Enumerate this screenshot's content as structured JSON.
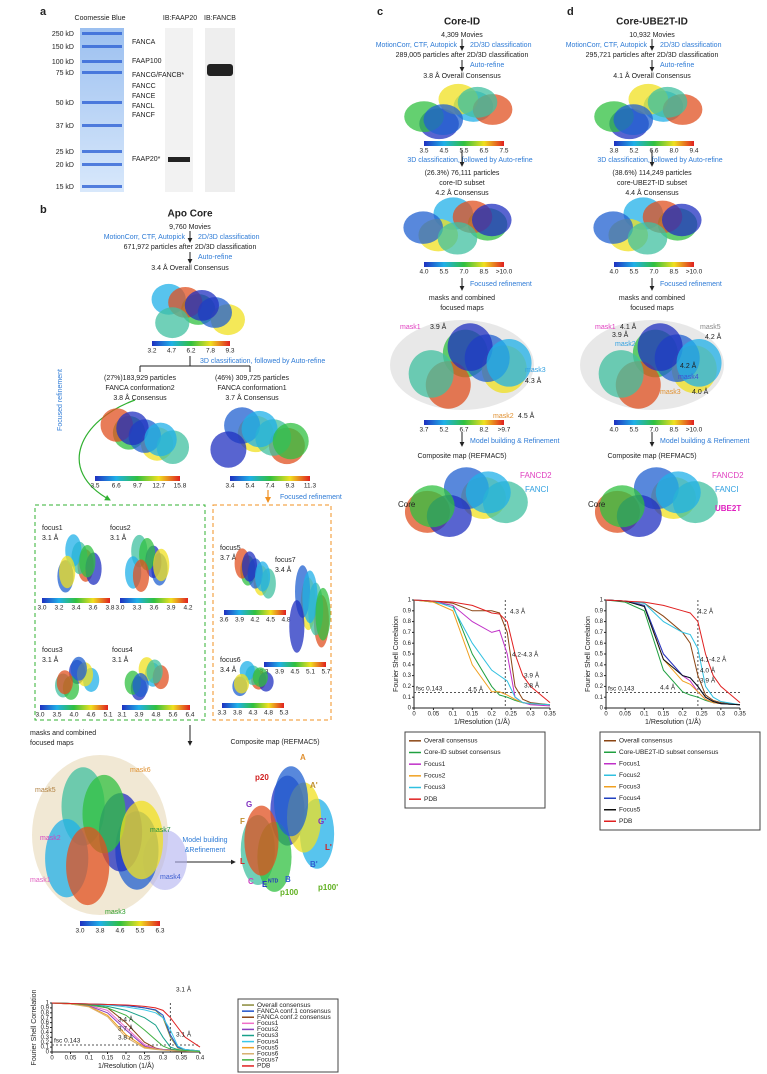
{
  "panel_a": {
    "label": "a",
    "title": "Coomessie Blue",
    "lanes": [
      "IB:FAAP20",
      "IB:FANCB"
    ],
    "markers": [
      "250 kD",
      "150 kD",
      "100 kD",
      "75 kD",
      "50 kD",
      "37 kD",
      "25 kD",
      "20 kD",
      "15 kD"
    ],
    "proteins": [
      "FANCA",
      "FAAP100",
      "FANCG/FANCB*",
      "FANCC",
      "FANCE",
      "FANCL",
      "FANCF",
      "FAAP20*"
    ]
  },
  "panel_b": {
    "label": "b",
    "title": "Apo Core",
    "movies": "9,760 Movies",
    "step1": "MotionCorr, CTF, Autopick",
    "step2": "2D/3D classification",
    "particles": "671,972 particles after 2D/3D classification",
    "refine": "Auto-refine",
    "consensus": "3.4 Å Overall Consensus",
    "colorbar1": [
      "3.2",
      "4.7",
      "6.2",
      "7.8",
      "9.3"
    ],
    "classification": "3D classification, followed by Auto-refine",
    "class_left": [
      "(27%)183,929 particles",
      "FANCA conformation2",
      "3.8 Å Consensus"
    ],
    "class_right": [
      "(46%) 309,725 particles",
      "FANCA conformation1",
      "3.7 Å Consensus"
    ],
    "colorbar2": [
      "3.5",
      "6.6",
      "9.7",
      "12.7",
      "15.8"
    ],
    "colorbar3": [
      "3.4",
      "5.4",
      "7.4",
      "9.3",
      "11.3"
    ],
    "focused_left": "Focused refinement",
    "focused_right": "Focused refinement",
    "focus_left": [
      {
        "name": "focus1",
        "res": "3.1 Å",
        "scale": [
          "3.0",
          "3.2",
          "3.4",
          "3.6",
          "3.8"
        ]
      },
      {
        "name": "focus2",
        "res": "3.1 Å",
        "scale": [
          "3.0",
          "3.3",
          "3.6",
          "3.9",
          "4.2"
        ]
      },
      {
        "name": "focus3",
        "res": "3.1 Å",
        "scale": [
          "3.0",
          "3.5",
          "4.0",
          "4.6",
          "5.1"
        ]
      },
      {
        "name": "focus4",
        "res": "3.1 Å",
        "scale": [
          "3.1",
          "3.9",
          "4.8",
          "5.6",
          "6.4"
        ]
      }
    ],
    "focus_right": [
      {
        "name": "focus5",
        "res": "3.7 Å",
        "scale": [
          "3.6",
          "3.9",
          "4.2",
          "4.5",
          "4.8"
        ]
      },
      {
        "name": "focus7",
        "res": "3.4 Å",
        "scale": [
          "3.3",
          "3.9",
          "4.5",
          "5.1",
          "5.7"
        ]
      },
      {
        "name": "focus6",
        "res": "3.4 Å",
        "scale": [
          "3.3",
          "3.8",
          "4.3",
          "4.8",
          "5.3"
        ]
      }
    ],
    "masks_caption": [
      "masks and combined",
      "focused maps"
    ],
    "masks": [
      "mask6",
      "mask5",
      "mask7",
      "mask2",
      "mask1",
      "mask4",
      "mask3"
    ],
    "colorbar4": [
      "3.0",
      "3.8",
      "4.6",
      "5.5",
      "6.3"
    ],
    "model": [
      "Model building",
      "&Refinement"
    ],
    "composite": "Composite map (REFMAC5)",
    "composite_labels": [
      "p20",
      "A",
      "A'",
      "G",
      "F",
      "G'",
      "L",
      "C",
      "E",
      "NTD",
      "B",
      "B'",
      "p100",
      "p100'",
      "L'"
    ]
  },
  "panel_c": {
    "label": "c",
    "title": "Core-ID",
    "movies": "4,309 Movies",
    "step1": "MotionCorr, CTF, Autopick",
    "step2": "2D/3D classification",
    "particles": "289,005 particles after 2D/3D classification",
    "refine": "Auto-refine",
    "consensus": "3.8 Å Overall Consensus",
    "colorbar1": [
      "3.5",
      "4.5",
      "5.5",
      "6.5",
      "7.5"
    ],
    "classification": "3D classification, followed by Auto-refine",
    "subset": [
      "(26.3%) 76,111 particles",
      "core-ID subset",
      "4.2 Å Consensus"
    ],
    "colorbar2": [
      "4.0",
      "5.5",
      "7.0",
      "8.5",
      ">10.0"
    ],
    "focused": "Focused refinement",
    "masks_caption": [
      "masks and combined",
      "focused maps"
    ],
    "mask_labels": [
      {
        "name": "mask1",
        "res": "3.9 Å"
      },
      {
        "name": "mask3",
        "res": "4.3 Å"
      },
      {
        "name": "mask2",
        "res": "4.5 Å"
      }
    ],
    "colorbar3": [
      "3.7",
      "5.2",
      "6.7",
      "8.2",
      ">9.7"
    ],
    "model": "Model building & Refinement",
    "composite": "Composite map (REFMAC5)",
    "composite_labels": [
      "Core",
      "FANCD2",
      "FANCI"
    ]
  },
  "panel_d": {
    "label": "d",
    "title": "Core-UBE2T-ID",
    "movies": "10,932 Movies",
    "step1": "MotionCorr, CTF, Autopick",
    "step2": "2D/3D classification",
    "particles": "295,721 particles after 2D/3D classification",
    "refine": "Auto-refine",
    "consensus": "4.1 Å Overall Consensus",
    "colorbar1": [
      "3.8",
      "5.2",
      "6.6",
      "8.0",
      "9.4"
    ],
    "classification": "3D classification, followed by Auto-refine",
    "subset": [
      "(38.6%) 114,249 particles",
      "core-UBE2T-ID subset",
      "4.4 Å Consensus"
    ],
    "colorbar2": [
      "4.0",
      "5.5",
      "7.0",
      "8.5",
      ">10.0"
    ],
    "focused": "Focused refinement",
    "masks_caption": [
      "masks and combined",
      "focused maps"
    ],
    "mask_labels": [
      {
        "name": "mask1",
        "res": "4.1 Å"
      },
      {
        "name": "mask5",
        "res": "4.2 Å"
      },
      {
        "name": "mask2",
        "res": "3.9 Å"
      },
      {
        "name": "mask4",
        "res": "4.2 Å"
      },
      {
        "name": "mask3",
        "res": "4.0 Å"
      }
    ],
    "colorbar3": [
      "4.0",
      "5.5",
      "7.0",
      "8.5",
      ">10.0"
    ],
    "model": "Model building & Refinement",
    "composite": "Composite map (REFMAC5)",
    "composite_labels": [
      "Core",
      "FANCD2",
      "FANCI",
      "UBE2T"
    ]
  },
  "chart_data": [
    {
      "type": "line",
      "x_label": "1/Resolution (1/Å)",
      "y_label": "Fourier Shell Correlation",
      "xlim": [
        0,
        0.4
      ],
      "ylim": [
        0,
        1
      ],
      "xticks": [
        0,
        0.05,
        0.1,
        0.15,
        0.2,
        0.25,
        0.3,
        0.35,
        0.4
      ],
      "yticks": [
        0,
        0.1,
        0.2,
        0.3,
        0.4,
        0.5,
        0.6,
        0.7,
        0.8,
        0.9,
        1
      ],
      "threshold": 0.143,
      "threshold_label": "fsc 0.143",
      "marker_x": 0.32,
      "annotations": [
        "3.1 Å",
        "3.1 Å",
        "3.4 Å",
        "3.7 Å",
        "3.8 Å"
      ],
      "x": [
        0,
        0.05,
        0.1,
        0.15,
        0.2,
        0.25,
        0.28,
        0.3,
        0.32,
        0.34,
        0.36,
        0.4
      ],
      "series": [
        {
          "name": "Overall consensus",
          "color": "#8a8a3a",
          "values": [
            1,
            0.99,
            0.98,
            0.97,
            0.95,
            0.9,
            0.85,
            0.7,
            0.3,
            0.08,
            0.05,
            0.02
          ]
        },
        {
          "name": "FANCA conf.1 consensus",
          "color": "#2050c8",
          "values": [
            1,
            0.99,
            0.98,
            0.97,
            0.95,
            0.9,
            0.86,
            0.75,
            0.35,
            0.1,
            0.05,
            0.02
          ]
        },
        {
          "name": "FANCA conf.2 consensus",
          "color": "#8b4513",
          "values": [
            1,
            0.99,
            0.97,
            0.9,
            0.6,
            0.2,
            0.08,
            0.05,
            0.04,
            0.03,
            0.02,
            0.01
          ]
        },
        {
          "name": "Focus1",
          "color": "#f06ec8",
          "values": [
            1,
            0.98,
            0.95,
            0.85,
            0.5,
            0.15,
            0.07,
            0.05,
            0.04,
            0.03,
            0.02,
            0.01
          ]
        },
        {
          "name": "Focus2",
          "color": "#8a3fbf",
          "values": [
            1,
            0.98,
            0.94,
            0.8,
            0.45,
            0.12,
            0.06,
            0.05,
            0.04,
            0.03,
            0.02,
            0.01
          ]
        },
        {
          "name": "Focus3",
          "color": "#18a08a",
          "values": [
            1,
            0.99,
            0.97,
            0.93,
            0.85,
            0.7,
            0.55,
            0.3,
            0.1,
            0.05,
            0.03,
            0.01
          ]
        },
        {
          "name": "Focus4",
          "color": "#3cc8e8",
          "values": [
            1,
            0.99,
            0.98,
            0.96,
            0.92,
            0.86,
            0.8,
            0.7,
            0.45,
            0.12,
            0.05,
            0.02
          ]
        },
        {
          "name": "Focus5",
          "color": "#f0a020",
          "values": [
            1,
            0.98,
            0.93,
            0.75,
            0.35,
            0.1,
            0.06,
            0.04,
            0.03,
            0.02,
            0.02,
            0.01
          ]
        },
        {
          "name": "Focus6",
          "color": "#d8b070",
          "values": [
            1,
            0.98,
            0.92,
            0.72,
            0.3,
            0.08,
            0.05,
            0.04,
            0.03,
            0.02,
            0.02,
            0.01
          ]
        },
        {
          "name": "Focus7",
          "color": "#40b040",
          "values": [
            1,
            0.99,
            0.96,
            0.9,
            0.75,
            0.45,
            0.25,
            0.12,
            0.06,
            0.04,
            0.03,
            0.01
          ]
        },
        {
          "name": "PDB",
          "color": "#e02020",
          "values": [
            1,
            0.99,
            0.98,
            0.97,
            0.96,
            0.93,
            0.9,
            0.85,
            0.7,
            0.5,
            0.3,
            0.1
          ]
        }
      ]
    },
    {
      "type": "line",
      "x_label": "1/Resolution (1/Å)",
      "y_label": "Fourier Shell Correlation",
      "xlim": [
        0,
        0.35
      ],
      "ylim": [
        0,
        1
      ],
      "xticks": [
        0,
        0.05,
        0.1,
        0.15,
        0.2,
        0.25,
        0.3,
        0.35
      ],
      "yticks": [
        0,
        0.1,
        0.2,
        0.3,
        0.4,
        0.5,
        0.6,
        0.7,
        0.8,
        0.9,
        1
      ],
      "threshold": 0.143,
      "threshold_label": "fsc 0.143",
      "marker_x": 0.235,
      "annotations": [
        "4.3 Å",
        "4.2-4.3 Å",
        "3.9 Å",
        "3.8 Å",
        "4.5 Å"
      ],
      "x": [
        0,
        0.05,
        0.1,
        0.15,
        0.2,
        0.22,
        0.24,
        0.26,
        0.28,
        0.3,
        0.35
      ],
      "series": [
        {
          "name": "Overall consensus",
          "color": "#8b4513",
          "values": [
            1,
            0.99,
            0.97,
            0.9,
            0.9,
            0.88,
            0.7,
            0.2,
            0.08,
            0.05,
            0.03
          ]
        },
        {
          "name": "Core-ID subset consensus",
          "color": "#20a040",
          "values": [
            1,
            0.98,
            0.95,
            0.5,
            0.2,
            0.12,
            0.1,
            0.07,
            0.05,
            0.04,
            0.03
          ]
        },
        {
          "name": "Focus1",
          "color": "#c030c8",
          "values": [
            1,
            0.99,
            0.95,
            0.8,
            0.7,
            0.72,
            0.5,
            0.1,
            0.05,
            0.03,
            0.02
          ]
        },
        {
          "name": "Focus2",
          "color": "#f0a020",
          "values": [
            1,
            0.98,
            0.9,
            0.4,
            0.15,
            0.15,
            0.12,
            0.08,
            0.05,
            0.04,
            0.03
          ]
        },
        {
          "name": "Focus3",
          "color": "#30c0e0",
          "values": [
            1,
            0.99,
            0.93,
            0.6,
            0.35,
            0.3,
            0.25,
            0.1,
            0.05,
            0.04,
            0.03
          ]
        },
        {
          "name": "PDB",
          "color": "#e02020",
          "values": [
            1,
            0.99,
            0.98,
            0.95,
            0.88,
            0.87,
            0.8,
            0.5,
            0.3,
            0.2,
            0.05
          ]
        }
      ]
    },
    {
      "type": "line",
      "x_label": "1/Resolution (1/Å)",
      "y_label": "Fourier Shell Correlation",
      "xlim": [
        0,
        0.35
      ],
      "ylim": [
        0,
        1
      ],
      "xticks": [
        0,
        0.05,
        0.1,
        0.15,
        0.2,
        0.25,
        0.3,
        0.35
      ],
      "yticks": [
        0,
        0.1,
        0.2,
        0.3,
        0.4,
        0.5,
        0.6,
        0.7,
        0.8,
        0.9,
        1
      ],
      "threshold": 0.143,
      "threshold_label": "fsc 0.143",
      "marker_x": 0.24,
      "annotations": [
        "4.2 Å",
        "4.1-4.2 Å",
        "4.0 Å",
        "3.9 Å",
        "4.4 Å"
      ],
      "x": [
        0,
        0.05,
        0.1,
        0.15,
        0.2,
        0.22,
        0.24,
        0.26,
        0.28,
        0.3,
        0.35
      ],
      "series": [
        {
          "name": "Overall consensus",
          "color": "#8b4513",
          "values": [
            1,
            0.99,
            0.97,
            0.85,
            0.7,
            0.6,
            0.3,
            0.12,
            0.07,
            0.05,
            0.03
          ]
        },
        {
          "name": "Core-UBE2T-ID subset consensus",
          "color": "#20a040",
          "values": [
            1,
            0.98,
            0.9,
            0.35,
            0.15,
            0.12,
            0.1,
            0.07,
            0.05,
            0.04,
            0.03
          ]
        },
        {
          "name": "Focus1",
          "color": "#c030c8",
          "values": [
            1,
            0.99,
            0.95,
            0.5,
            0.3,
            0.25,
            0.15,
            0.08,
            0.05,
            0.04,
            0.03
          ]
        },
        {
          "name": "Focus2",
          "color": "#30c0e0",
          "values": [
            1,
            0.99,
            0.97,
            0.8,
            0.7,
            0.68,
            0.55,
            0.2,
            0.1,
            0.06,
            0.03
          ]
        },
        {
          "name": "Focus3",
          "color": "#f0a020",
          "values": [
            1,
            0.99,
            0.95,
            0.45,
            0.25,
            0.22,
            0.15,
            0.08,
            0.05,
            0.04,
            0.03
          ]
        },
        {
          "name": "Focus4",
          "color": "#2040c0",
          "values": [
            1,
            0.99,
            0.95,
            0.5,
            0.3,
            0.28,
            0.2,
            0.1,
            0.06,
            0.04,
            0.03
          ]
        },
        {
          "name": "Focus5",
          "color": "#111111",
          "values": [
            1,
            0.99,
            0.94,
            0.45,
            0.3,
            0.28,
            0.2,
            0.1,
            0.06,
            0.04,
            0.03
          ]
        },
        {
          "name": "PDB",
          "color": "#e02020",
          "values": [
            1,
            0.99,
            0.98,
            0.95,
            0.9,
            0.88,
            0.8,
            0.5,
            0.3,
            0.2,
            0.05
          ]
        }
      ]
    }
  ]
}
